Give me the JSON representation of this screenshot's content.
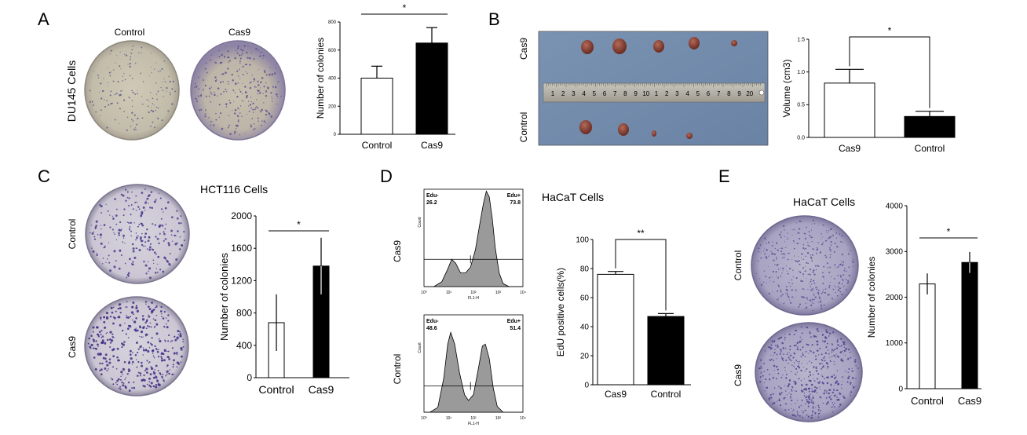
{
  "panels": {
    "A": {
      "letter": "A",
      "cell_label": "DU145 Cells",
      "dish_labels": [
        "Control",
        "Cas9"
      ],
      "chart_data": {
        "type": "bar",
        "categories": [
          "Control",
          "Cas9"
        ],
        "values": [
          400,
          650
        ],
        "errors": [
          85,
          110
        ],
        "ylabel": "Number of colonies",
        "ylim": [
          0,
          800
        ],
        "yticks": [
          "0",
          "200",
          "400",
          "600",
          "800"
        ],
        "bar_fills": [
          "#ffffff",
          "#000000"
        ],
        "significance": "*"
      }
    },
    "B": {
      "letter": "B",
      "photo_labels": [
        "Cas9",
        "Control"
      ],
      "ruler_numbers": [
        "1",
        "2",
        "3",
        "4",
        "5",
        "6",
        "7",
        "8",
        "9",
        "10",
        "1",
        "2",
        "3",
        "4",
        "5",
        "6",
        "7",
        "8",
        "9",
        "20"
      ],
      "chart_data": {
        "type": "bar",
        "categories": [
          "Cas9",
          "Control"
        ],
        "values": [
          0.83,
          0.32
        ],
        "errors": [
          0.21,
          0.08
        ],
        "ylabel": "Volume  (cm3)",
        "ylim": [
          0,
          1.5
        ],
        "yticks": [
          "0.0",
          "0.5",
          "1.0",
          "1.5"
        ],
        "bar_fills": [
          "#ffffff",
          "#000000"
        ],
        "significance": "*"
      }
    },
    "C": {
      "letter": "C",
      "title": "HCT116 Cells",
      "dish_labels": [
        "Control",
        "Cas9"
      ],
      "chart_data": {
        "type": "bar",
        "categories": [
          "Control",
          "Cas9"
        ],
        "values": [
          680,
          1380
        ],
        "errors": [
          350,
          350
        ],
        "ylabel": "Number of colonies",
        "ylim": [
          0,
          2000
        ],
        "yticks": [
          "0",
          "400",
          "800",
          "1200",
          "1600",
          "2000"
        ],
        "bar_fills": [
          "#ffffff",
          "#000000"
        ],
        "significance": "*"
      }
    },
    "D": {
      "letter": "D",
      "title": "HaCaT Cells",
      "flow_labels": [
        "Cas9",
        "Control"
      ],
      "flow": [
        {
          "left_label": "Edu-",
          "left_value": "26.2",
          "right_label": "Edu+",
          "right_value": "73.8"
        },
        {
          "left_label": "Edu-",
          "left_value": "48.6",
          "right_label": "Edu+",
          "right_value": "51.4"
        }
      ],
      "flow_axis": {
        "x_label": "FL1-H",
        "y_label": "Count",
        "x_ticks": [
          "10⁰",
          "10¹",
          "10²",
          "10³",
          "10⁴"
        ]
      },
      "chart_data": {
        "type": "bar",
        "categories": [
          "Cas9",
          "Control"
        ],
        "values": [
          76,
          47
        ],
        "errors": [
          2,
          2
        ],
        "ylabel": "EdU positive cells(%)",
        "ylim": [
          0,
          100
        ],
        "yticks": [
          "0",
          "20",
          "40",
          "60",
          "80",
          "100"
        ],
        "bar_fills": [
          "#ffffff",
          "#000000"
        ],
        "significance": "**"
      }
    },
    "E": {
      "letter": "E",
      "title": "HaCaT Cells",
      "dish_labels": [
        "Control",
        "Cas9"
      ],
      "chart_data": {
        "type": "bar",
        "categories": [
          "Control",
          "Cas9"
        ],
        "values": [
          2290,
          2760
        ],
        "errors": [
          230,
          230
        ],
        "ylabel": "Number of colonies",
        "ylim": [
          0,
          4000
        ],
        "yticks": [
          "0",
          "1000",
          "2000",
          "3000",
          "4000"
        ],
        "bar_fills": [
          "#ffffff",
          "#000000"
        ],
        "significance": "*"
      }
    }
  }
}
